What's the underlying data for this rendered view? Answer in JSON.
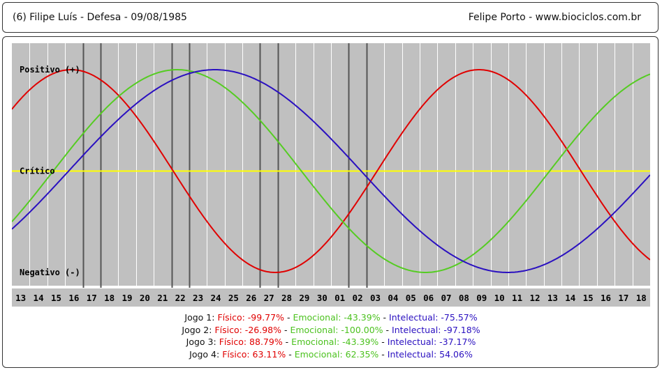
{
  "header": {
    "left_text": "(6)  Filipe Luís - Defesa -  09/08/1985",
    "right_text": "Felipe Porto   -   www.biociclos.com.br"
  },
  "colors": {
    "background": "#c0c0c0",
    "grid": "#ffffff",
    "critical_line": "#ffff00",
    "game_line": "#555555",
    "fisico": "#e00000",
    "emocional": "#55cc22",
    "intelectual": "#2a10c0",
    "label_band": "#c0c0c0"
  },
  "chart_data": {
    "type": "line",
    "title": "",
    "xlabel": "",
    "ylabel": "",
    "ylim": [
      -100,
      100
    ],
    "x_labels": [
      "13",
      "14",
      "15",
      "16",
      "17",
      "18",
      "19",
      "20",
      "21",
      "22",
      "23",
      "24",
      "25",
      "26",
      "27",
      "28",
      "29",
      "30",
      "01",
      "02",
      "03",
      "04",
      "05",
      "06",
      "07",
      "08",
      "09",
      "10",
      "11",
      "12",
      "13",
      "14",
      "15",
      "16",
      "17",
      "18"
    ],
    "y_annotations": [
      {
        "label": "Positivo (+)",
        "value": 100
      },
      {
        "label": "Crítico",
        "value": 0
      },
      {
        "label": "Negativo (-)",
        "value": -100
      }
    ],
    "game_markers": [
      4,
      5,
      9,
      10,
      14,
      15,
      19,
      20
    ],
    "series": [
      {
        "key": "fisico",
        "color": "#e00000",
        "period": 23,
        "phase_days": -2.4
      },
      {
        "key": "emocional",
        "color": "#55cc22",
        "period": 28,
        "phase_days": 2.33
      },
      {
        "key": "intelectual",
        "color": "#2a10c0",
        "period": 33,
        "phase_days": 3.2
      }
    ]
  },
  "legend": [
    {
      "label": "Jogo 1:",
      "fisico": "Físico: -99.77%",
      "emocional": "Emocional: -43.39%",
      "intelectual": "Intelectual: -75.57%"
    },
    {
      "label": "Jogo 2:",
      "fisico": "Físico: -26.98%",
      "emocional": "Emocional: -100.00%",
      "intelectual": "Intelectual: -97.18%"
    },
    {
      "label": "Jogo 3:",
      "fisico": "Físico: 88.79%",
      "emocional": "Emocional: -43.39%",
      "intelectual": "Intelectual: -37.17%"
    },
    {
      "label": "Jogo 4:",
      "fisico": "Físico: 63.11%",
      "emocional": "Emocional: 62.35%",
      "intelectual": "Intelectual: 54.06%"
    }
  ],
  "separator": " - "
}
